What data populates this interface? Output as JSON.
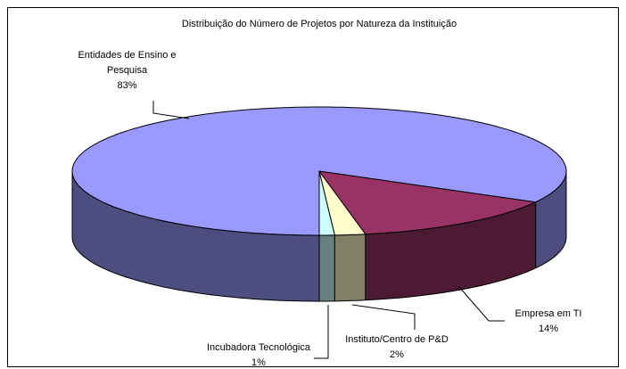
{
  "chart_data": {
    "type": "pie3d",
    "title": "Distribuição do Número de Projetos por Natureza da Instituição",
    "categories": [
      "Incubadora Tecnológica",
      "Instituto/Centro de P&D",
      "Empresa em TI",
      "Entidades de Ensino e Pesquisa"
    ],
    "values": [
      1,
      2,
      14,
      83
    ],
    "value_labels": [
      "1%",
      "2%",
      "14%",
      "83%"
    ],
    "colors": [
      "#ccffff",
      "#ffffcc",
      "#993366",
      "#9999ff"
    ]
  }
}
